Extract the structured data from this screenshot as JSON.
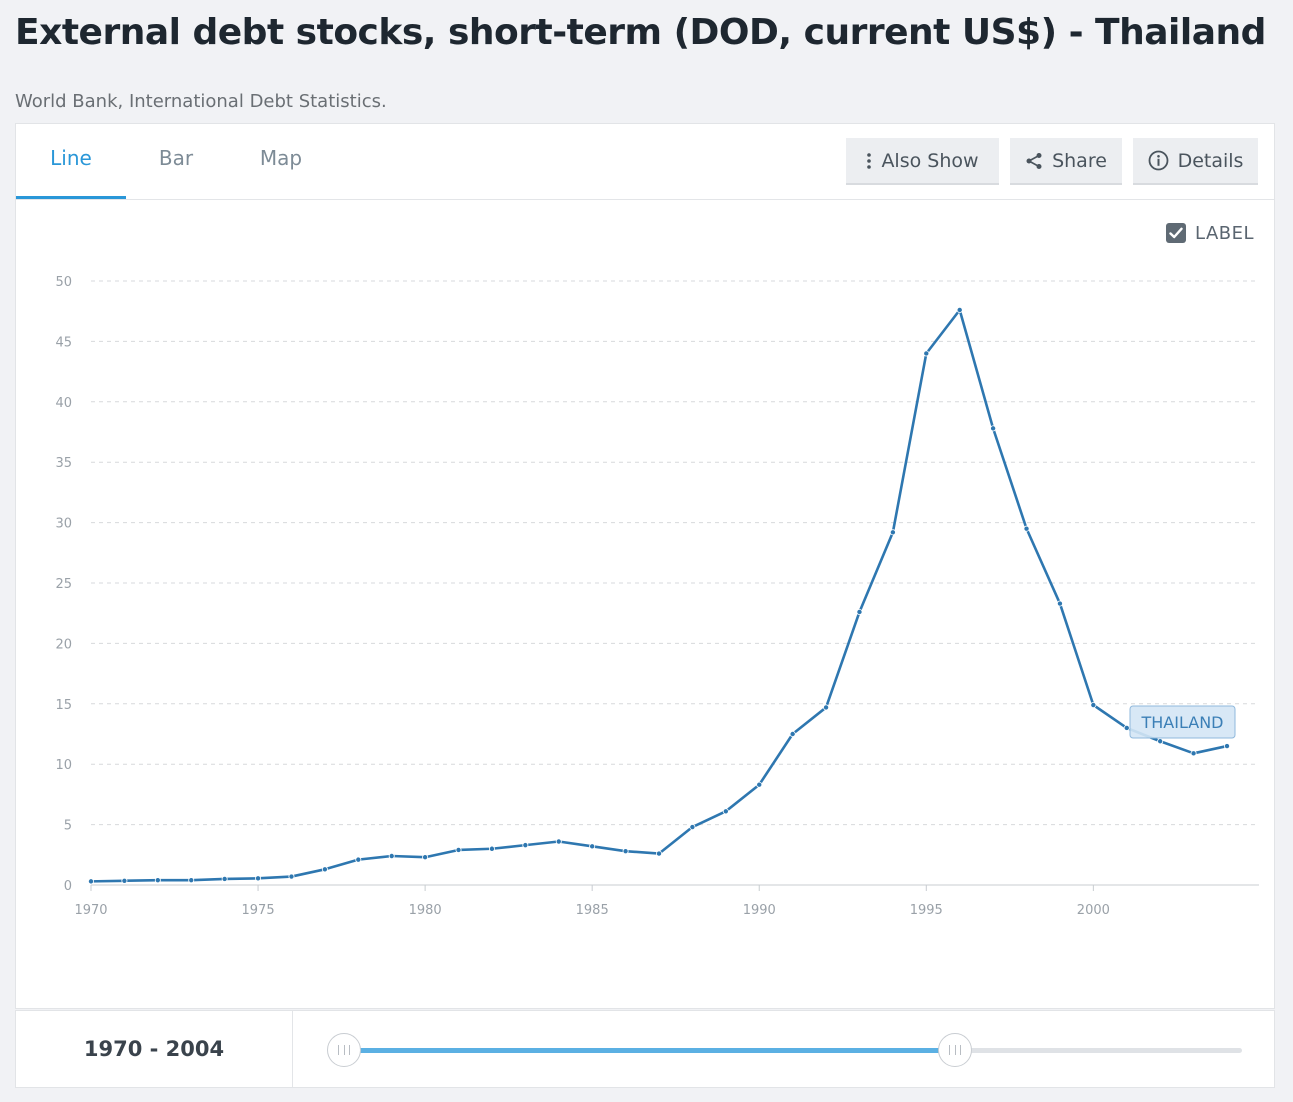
{
  "page": {
    "title": "External debt stocks, short-term (DOD, current US$) - Thailand",
    "subtitle": "World Bank, International Debt Statistics."
  },
  "tabs": [
    {
      "label": "Line",
      "active": true
    },
    {
      "label": "Bar",
      "active": false
    },
    {
      "label": "Map",
      "active": false
    }
  ],
  "toolbar": {
    "also_show": {
      "label": "Also Show",
      "icon": "vertical-dots-icon"
    },
    "share": {
      "label": "Share",
      "icon": "share-icon"
    },
    "details": {
      "label": "Details",
      "icon": "info-icon"
    }
  },
  "label_toggle": {
    "label": "LABEL",
    "checked": true
  },
  "chart_data": {
    "type": "line",
    "title": "",
    "xlabel": "",
    "ylabel": "",
    "xlim": [
      1970,
      2004
    ],
    "ylim": [
      0,
      50
    ],
    "yticks": [
      0,
      5,
      10,
      15,
      20,
      25,
      30,
      35,
      40,
      45,
      50
    ],
    "xticks": [
      1970,
      1975,
      1980,
      1985,
      1990,
      1995,
      2000
    ],
    "grid": "horizontal-dashed",
    "x": [
      1970,
      1971,
      1972,
      1973,
      1974,
      1975,
      1976,
      1977,
      1978,
      1979,
      1980,
      1981,
      1982,
      1983,
      1984,
      1985,
      1986,
      1987,
      1988,
      1989,
      1990,
      1991,
      1992,
      1993,
      1994,
      1995,
      1996,
      1997,
      1998,
      1999,
      2000,
      2001,
      2002,
      2003,
      2004
    ],
    "series": [
      {
        "name": "THAILAND",
        "color": "#2e77b0",
        "values": [
          0.3,
          0.35,
          0.4,
          0.4,
          0.5,
          0.55,
          0.7,
          1.3,
          2.1,
          2.4,
          2.3,
          2.9,
          3.0,
          3.3,
          3.6,
          3.2,
          2.8,
          2.6,
          4.8,
          6.1,
          8.3,
          12.5,
          14.7,
          22.6,
          29.2,
          44.0,
          47.6,
          37.8,
          29.5,
          23.3,
          14.9,
          13.0,
          11.9,
          10.9,
          11.5
        ]
      }
    ],
    "series_label": {
      "text": "THAILAND",
      "fill": "#d4e6f5",
      "stroke": "#8fb8dc"
    }
  },
  "range": {
    "label": "1970 - 2004",
    "start_fraction": 0.0,
    "end_fraction": 0.68
  },
  "colors": {
    "accent": "#2a97d8",
    "line": "#2e77b0",
    "grid": "#d7d9dc",
    "tick_text": "#9aa1a8"
  }
}
